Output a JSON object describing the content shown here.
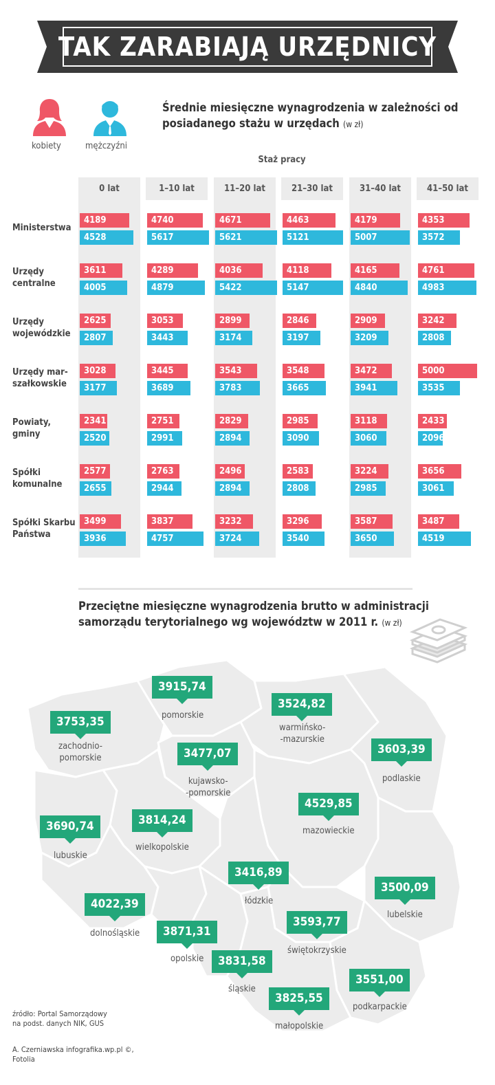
{
  "header": {
    "title": "TAK ZARABIAJĄ URZĘDNICY"
  },
  "legend": {
    "women": "kobiety",
    "men": "mężczyźni"
  },
  "colors": {
    "women": "#ef5766",
    "men": "#2eb8dc",
    "badge": "#23a77a",
    "banner": "#3a3a3a"
  },
  "section1": {
    "title": "Średnie miesięczne wynagrodzenia w zależności od posiadanego stażu w urzędach",
    "unit": "(w zł)",
    "axis_label": "Staż pracy"
  },
  "section2": {
    "title": "Przeciętne miesięczne wynagrodzenia brutto w administracji samorządu terytorialnego wg województw w 2011 r.",
    "unit": "(w zł)"
  },
  "footer": {
    "source_line1": "źródło: Portal Samorządowy",
    "source_line2": "na podst. danych NIK, GUS",
    "credit_line1": "A. Czerniawska infografika.wp.pl ©,",
    "credit_line2": "Fotolia"
  },
  "chart_data": [
    {
      "type": "bar",
      "title": "Średnie miesięczne wynagrodzenia w zależności od posiadanego stażu w urzędach (w zł)",
      "xlabel": "Staż pracy",
      "columns": [
        "0 lat",
        "1–10 lat",
        "11–20 lat",
        "21–30 lat",
        "31–40 lat",
        "41–50 lat"
      ],
      "categories": [
        "Ministerstwa",
        "Urzędy centralne",
        "Urzędy wojewódzkie",
        "Urzędy marszałkowskie",
        "Powiaty, gminy",
        "Spółki komunalne",
        "Spółki Skarbu Państwa"
      ],
      "category_labels": [
        [
          "Ministerstwa"
        ],
        [
          "Urzędy",
          "centralne"
        ],
        [
          "Urzędy",
          "wojewódzkie"
        ],
        [
          "Urzędy mar-",
          "szałkowskie"
        ],
        [
          "Powiaty,",
          "gminy"
        ],
        [
          "Spółki",
          "komunalne"
        ],
        [
          "Spółki Skarbu",
          "Państwa"
        ]
      ],
      "series": [
        {
          "name": "kobiety",
          "values": [
            [
              4189,
              4740,
              4671,
              4463,
              4179,
              4353
            ],
            [
              3611,
              4289,
              4036,
              4118,
              4165,
              4761
            ],
            [
              2625,
              3053,
              2899,
              2846,
              2909,
              3242
            ],
            [
              3028,
              3445,
              3543,
              3548,
              3472,
              5000
            ],
            [
              2341,
              2751,
              2829,
              2985,
              3118,
              2433
            ],
            [
              2577,
              2763,
              2496,
              2583,
              3224,
              3656
            ],
            [
              3499,
              3837,
              3232,
              3296,
              3587,
              3487
            ]
          ]
        },
        {
          "name": "mężczyźni",
          "values": [
            [
              4528,
              5617,
              5621,
              5121,
              5007,
              3572
            ],
            [
              4005,
              4879,
              5422,
              5147,
              4840,
              4983
            ],
            [
              2807,
              3443,
              3174,
              3197,
              3209,
              2808
            ],
            [
              3177,
              3689,
              3783,
              3665,
              3941,
              3535
            ],
            [
              2520,
              2991,
              2894,
              3090,
              3060,
              2096
            ],
            [
              2655,
              2944,
              2894,
              2808,
              2985,
              3061
            ],
            [
              3936,
              4757,
              3724,
              3540,
              3650,
              4519
            ]
          ]
        }
      ]
    },
    {
      "type": "map",
      "title": "Przeciętne miesięczne wynagrodzenia brutto w administracji samorządu terytorialnego wg województw w 2011 r. (w zł)",
      "regions": [
        {
          "name": "pomorskie",
          "label": "pomorskie",
          "value": "3915,74"
        },
        {
          "name": "warmińsko-mazurskie",
          "label": "warmińsko-\n-mazurskie",
          "value": "3524,82"
        },
        {
          "name": "zachodniopomorskie",
          "label": "zachodnio-\npomorskie",
          "value": "3753,35"
        },
        {
          "name": "kujawsko-pomorskie",
          "label": "kujawsko-\n-pomorskie",
          "value": "3477,07"
        },
        {
          "name": "podlaskie",
          "label": "podlaskie",
          "value": "3603,39"
        },
        {
          "name": "mazowieckie",
          "label": "mazowieckie",
          "value": "4529,85"
        },
        {
          "name": "lubuskie",
          "label": "lubuskie",
          "value": "3690,74"
        },
        {
          "name": "wielkopolskie",
          "label": "wielkopolskie",
          "value": "3814,24"
        },
        {
          "name": "łódzkie",
          "label": "łódzkie",
          "value": "3416,89"
        },
        {
          "name": "lubelskie",
          "label": "lubelskie",
          "value": "3500,09"
        },
        {
          "name": "dolnośląskie",
          "label": "dolnośląskie",
          "value": "4022,39"
        },
        {
          "name": "opolskie",
          "label": "opolskie",
          "value": "3871,31"
        },
        {
          "name": "świętokrzyskie",
          "label": "świętokrzyskie",
          "value": "3593,77"
        },
        {
          "name": "śląskie",
          "label": "śląskie",
          "value": "3831,58"
        },
        {
          "name": "podkarpackie",
          "label": "podkarpackie",
          "value": "3551,00"
        },
        {
          "name": "małopolskie",
          "label": "małopolskie",
          "value": "3825,55"
        }
      ]
    }
  ]
}
